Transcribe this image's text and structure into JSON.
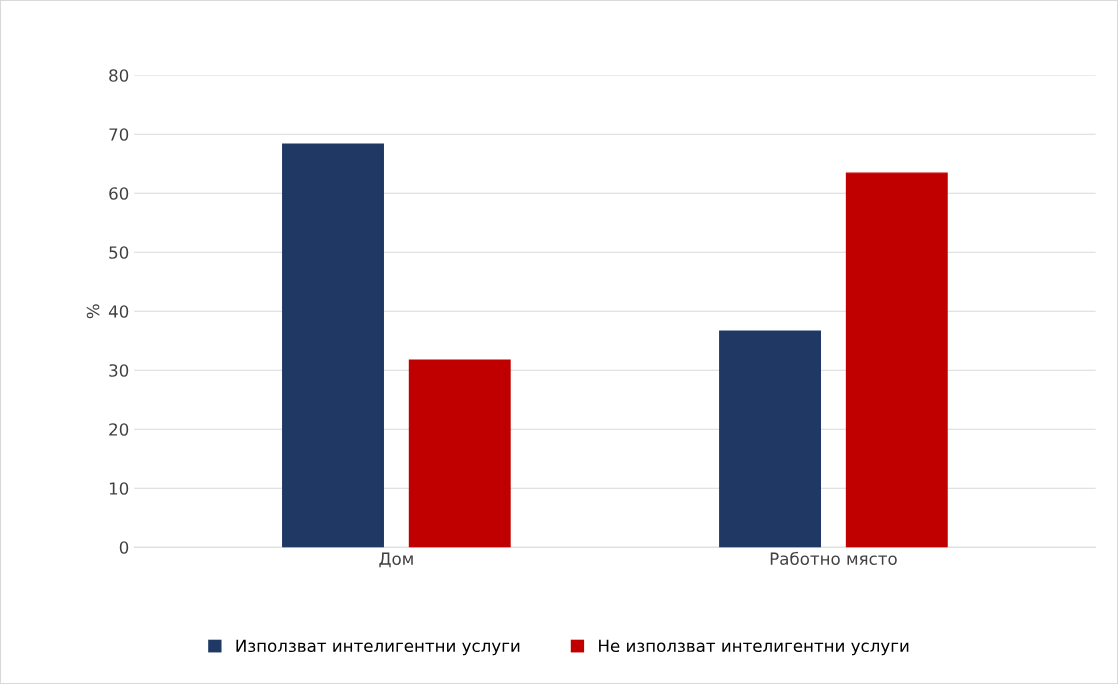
{
  "chart_data": {
    "type": "bar",
    "ylabel": "%",
    "categories": [
      "Дом",
      "Работно място"
    ],
    "series": [
      {
        "name": "Използват интелигентни услуги",
        "color": "#203864",
        "values": [
          68.3,
          36.6
        ]
      },
      {
        "name": "Не използват интелигентни услуги",
        "color": "#c00000",
        "values": [
          31.7,
          63.4
        ]
      }
    ],
    "ylim": [
      0,
      80
    ],
    "yticks": [
      0,
      10,
      20,
      30,
      40,
      50,
      60,
      70,
      80
    ],
    "grid": "y",
    "legend": "bottom"
  }
}
